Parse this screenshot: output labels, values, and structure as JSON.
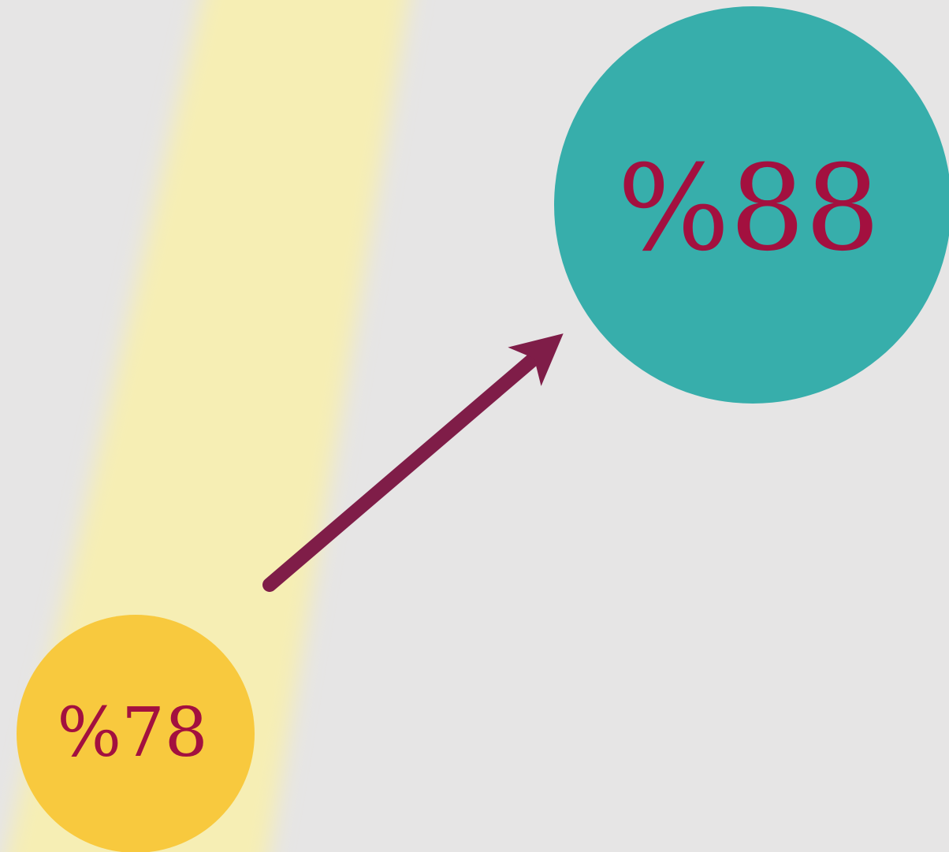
{
  "items": [
    {
      "label": "%78"
    },
    {
      "label": "%88"
    }
  ]
}
